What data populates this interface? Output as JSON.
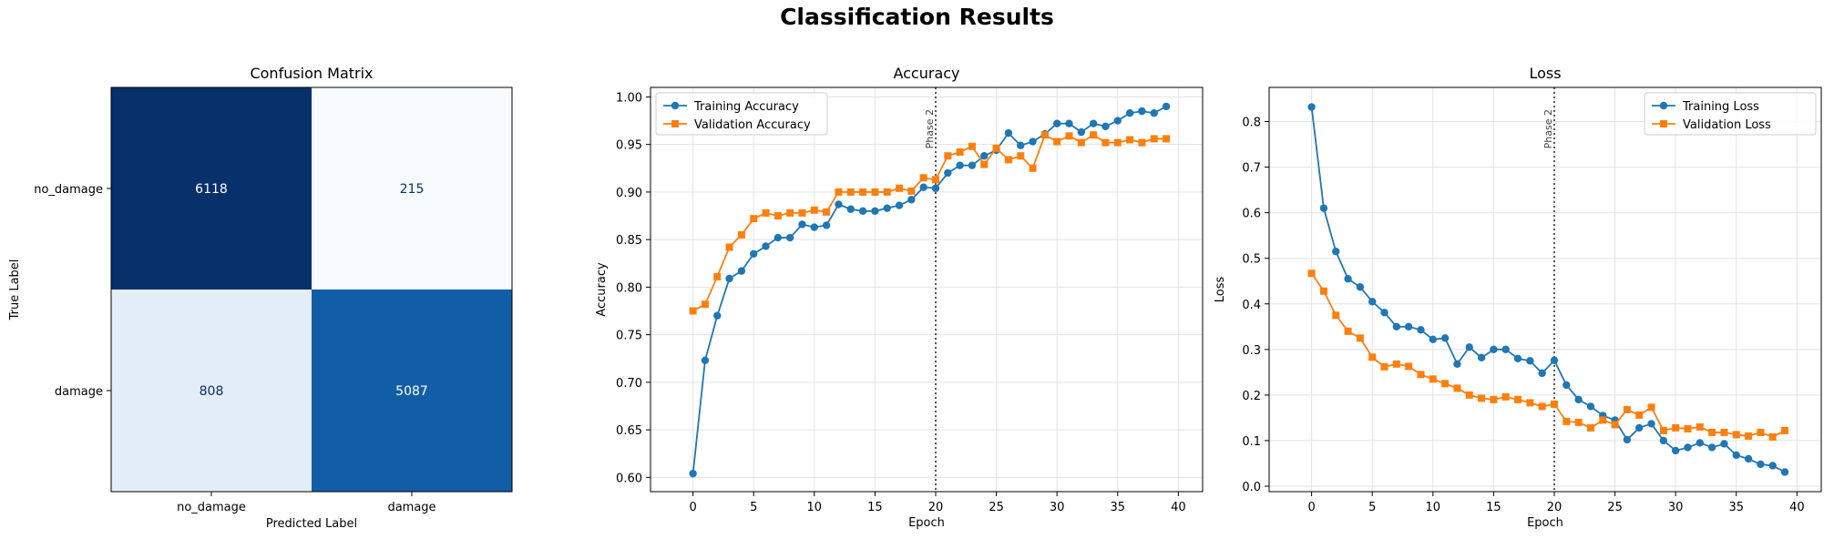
{
  "suptitle": "Classification Results",
  "chart_data": [
    {
      "type": "heatmap",
      "title": "Confusion Matrix",
      "xlabel": "Predicted Label",
      "ylabel": "True Label",
      "x_categories": [
        "no_damage",
        "damage"
      ],
      "y_categories": [
        "no_damage",
        "damage"
      ],
      "values": [
        [
          6118,
          215
        ],
        [
          808,
          5087
        ]
      ],
      "colormap": "Blues",
      "colors": {
        "low": "#f7fbff",
        "high": "#08306b",
        "text_dark": "#08306b",
        "text_light": "#ffffff"
      }
    },
    {
      "type": "line",
      "title": "Accuracy",
      "xlabel": "Epoch",
      "ylabel": "Accuracy",
      "xlim": [
        -3.5,
        42
      ],
      "ylim": [
        0.585,
        1.01
      ],
      "xticks": [
        0,
        5,
        10,
        15,
        20,
        25,
        30,
        35,
        40
      ],
      "yticks": [
        0.6,
        0.65,
        0.7,
        0.75,
        0.8,
        0.85,
        0.9,
        0.95,
        1.0
      ],
      "ytick_labels": [
        "0.60",
        "0.65",
        "0.70",
        "0.75",
        "0.80",
        "0.85",
        "0.90",
        "0.95",
        "1.00"
      ],
      "grid": true,
      "legend": "upper-left",
      "vline": {
        "x": 20,
        "label": "Phase 2"
      },
      "x": [
        0,
        1,
        2,
        3,
        4,
        5,
        6,
        7,
        8,
        9,
        10,
        11,
        12,
        13,
        14,
        15,
        16,
        17,
        18,
        19,
        20,
        21,
        22,
        23,
        24,
        25,
        26,
        27,
        28,
        29,
        30,
        31,
        32,
        33,
        34,
        35,
        36,
        37,
        38,
        39
      ],
      "series": [
        {
          "name": "Training Accuracy",
          "marker": "circle",
          "color": "#1f77b4",
          "values": [
            0.604,
            0.723,
            0.77,
            0.809,
            0.817,
            0.835,
            0.843,
            0.852,
            0.852,
            0.866,
            0.863,
            0.865,
            0.887,
            0.882,
            0.88,
            0.88,
            0.883,
            0.886,
            0.892,
            0.905,
            0.904,
            0.92,
            0.928,
            0.928,
            0.938,
            0.944,
            0.962,
            0.949,
            0.953,
            0.961,
            0.972,
            0.972,
            0.963,
            0.972,
            0.969,
            0.975,
            0.983,
            0.985,
            0.983,
            0.99
          ]
        },
        {
          "name": "Validation Accuracy",
          "marker": "square",
          "color": "#ff7f0e",
          "values": [
            0.775,
            0.782,
            0.811,
            0.842,
            0.855,
            0.872,
            0.878,
            0.875,
            0.878,
            0.878,
            0.881,
            0.879,
            0.9,
            0.9,
            0.9,
            0.9,
            0.9,
            0.904,
            0.901,
            0.915,
            0.913,
            0.938,
            0.942,
            0.948,
            0.929,
            0.946,
            0.934,
            0.938,
            0.925,
            0.96,
            0.953,
            0.959,
            0.952,
            0.96,
            0.952,
            0.952,
            0.955,
            0.952,
            0.956,
            0.956
          ]
        }
      ]
    },
    {
      "type": "line",
      "title": "Loss",
      "xlabel": "Epoch",
      "ylabel": "Loss",
      "xlim": [
        -3.5,
        42
      ],
      "ylim": [
        -0.012,
        0.875
      ],
      "xticks": [
        0,
        5,
        10,
        15,
        20,
        25,
        30,
        35,
        40
      ],
      "yticks": [
        0.0,
        0.1,
        0.2,
        0.3,
        0.4,
        0.5,
        0.6,
        0.7,
        0.8
      ],
      "ytick_labels": [
        "0.0",
        "0.1",
        "0.2",
        "0.3",
        "0.4",
        "0.5",
        "0.6",
        "0.7",
        "0.8"
      ],
      "grid": true,
      "legend": "upper-right",
      "vline": {
        "x": 20,
        "label": "Phase 2"
      },
      "x": [
        0,
        1,
        2,
        3,
        4,
        5,
        6,
        7,
        8,
        9,
        10,
        11,
        12,
        13,
        14,
        15,
        16,
        17,
        18,
        19,
        20,
        21,
        22,
        23,
        24,
        25,
        26,
        27,
        28,
        29,
        30,
        31,
        32,
        33,
        34,
        35,
        36,
        37,
        38,
        39
      ],
      "series": [
        {
          "name": "Training Loss",
          "marker": "circle",
          "color": "#1f77b4",
          "values": [
            0.832,
            0.61,
            0.515,
            0.455,
            0.437,
            0.405,
            0.381,
            0.35,
            0.35,
            0.343,
            0.322,
            0.325,
            0.268,
            0.305,
            0.282,
            0.3,
            0.3,
            0.28,
            0.275,
            0.248,
            0.276,
            0.222,
            0.19,
            0.175,
            0.155,
            0.145,
            0.102,
            0.128,
            0.137,
            0.1,
            0.078,
            0.085,
            0.095,
            0.085,
            0.093,
            0.068,
            0.06,
            0.048,
            0.045,
            0.031
          ]
        },
        {
          "name": "Validation Loss",
          "marker": "square",
          "color": "#ff7f0e",
          "values": [
            0.467,
            0.428,
            0.375,
            0.34,
            0.325,
            0.283,
            0.262,
            0.268,
            0.263,
            0.245,
            0.235,
            0.225,
            0.215,
            0.2,
            0.193,
            0.19,
            0.196,
            0.19,
            0.183,
            0.175,
            0.18,
            0.142,
            0.14,
            0.128,
            0.145,
            0.135,
            0.168,
            0.156,
            0.173,
            0.122,
            0.128,
            0.126,
            0.13,
            0.118,
            0.118,
            0.113,
            0.11,
            0.118,
            0.108,
            0.122
          ]
        }
      ]
    }
  ]
}
